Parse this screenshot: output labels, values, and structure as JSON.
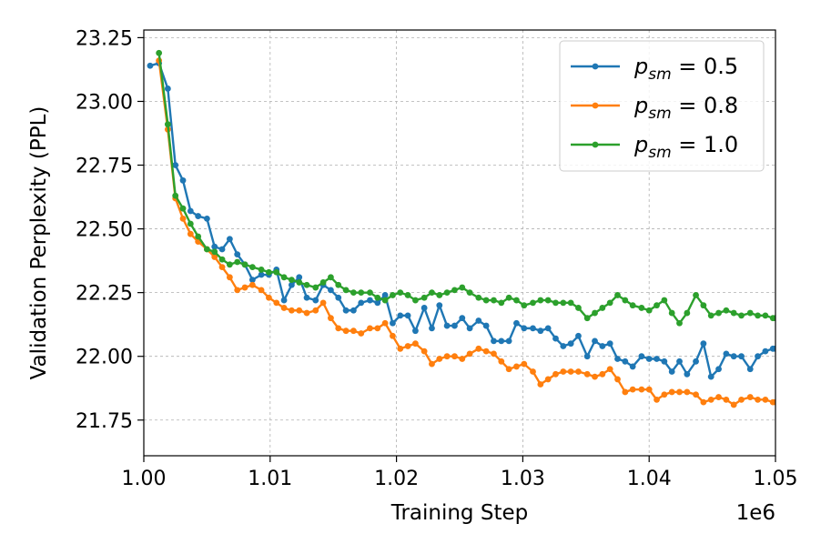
{
  "chart_data": {
    "type": "line",
    "title": "",
    "xlabel": "Training Step",
    "ylabel": "Validation Perplexity (PPL)",
    "x_offset_label": "1e6",
    "xlim": [
      1.0,
      1.05
    ],
    "ylim": [
      21.61,
      23.28
    ],
    "x_ticks": [
      1.0,
      1.01,
      1.02,
      1.03,
      1.04,
      1.05
    ],
    "x_tick_labels": [
      "1.00",
      "1.01",
      "1.02",
      "1.03",
      "1.04",
      "1.05"
    ],
    "y_ticks": [
      21.75,
      22.0,
      22.25,
      22.5,
      22.75,
      23.0,
      23.25
    ],
    "y_tick_labels": [
      "21.75",
      "22.00",
      "22.25",
      "22.50",
      "22.75",
      "23.00",
      "23.25"
    ],
    "grid": true,
    "legend_position": "top-right",
    "series": [
      {
        "name": "p_sm = 0.5",
        "legend_base": "p",
        "legend_sub": "sm",
        "legend_value": " = 0.5",
        "color": "#1f77b4",
        "x": [
          1.0005,
          1.0012,
          1.0019,
          1.0025,
          1.0031,
          1.0037,
          1.0043,
          1.005,
          1.0056,
          1.0062,
          1.0068,
          1.0074,
          1.008,
          1.0086,
          1.0093,
          1.0099,
          1.0105,
          1.0111,
          1.0117,
          1.0123,
          1.0129,
          1.0136,
          1.0142,
          1.0148,
          1.0154,
          1.016,
          1.0166,
          1.0172,
          1.0179,
          1.0185,
          1.0191,
          1.0197,
          1.0203,
          1.0209,
          1.0215,
          1.0222,
          1.0228,
          1.0234,
          1.024,
          1.0246,
          1.0252,
          1.0258,
          1.0265,
          1.0271,
          1.0277,
          1.0283,
          1.0289,
          1.0295,
          1.0301,
          1.0308,
          1.0314,
          1.032,
          1.0326,
          1.0332,
          1.0338,
          1.0344,
          1.0351,
          1.0357,
          1.0363,
          1.0369,
          1.0375,
          1.0381,
          1.0387,
          1.0394,
          1.04,
          1.0406,
          1.0412,
          1.0418,
          1.0424,
          1.043,
          1.0437,
          1.0443,
          1.0449,
          1.0455,
          1.0461,
          1.0467,
          1.0473,
          1.048,
          1.0486,
          1.0492,
          1.0498,
          1.05
        ],
        "y": [
          23.14,
          23.15,
          23.05,
          22.75,
          22.69,
          22.57,
          22.55,
          22.54,
          22.43,
          22.42,
          22.46,
          22.4,
          22.36,
          22.3,
          22.32,
          22.32,
          22.34,
          22.22,
          22.28,
          22.31,
          22.23,
          22.22,
          22.28,
          22.26,
          22.23,
          22.18,
          22.18,
          22.21,
          22.22,
          22.21,
          22.24,
          22.13,
          22.16,
          22.16,
          22.1,
          22.19,
          22.11,
          22.2,
          22.12,
          22.12,
          22.15,
          22.11,
          22.14,
          22.12,
          22.06,
          22.06,
          22.06,
          22.13,
          22.11,
          22.11,
          22.1,
          22.11,
          22.07,
          22.04,
          22.05,
          22.08,
          22.0,
          22.06,
          22.04,
          22.05,
          21.99,
          21.98,
          21.96,
          22.0,
          21.99,
          21.99,
          21.98,
          21.94,
          21.98,
          21.93,
          21.98,
          22.05,
          21.92,
          21.95,
          22.01,
          22.0,
          22.0,
          21.95,
          22.0,
          22.02,
          22.03,
          22.03
        ]
      },
      {
        "name": "p_sm = 0.8",
        "legend_base": "p",
        "legend_sub": "sm",
        "legend_value": " = 0.8",
        "color": "#ff7f0e",
        "x": [
          1.0012,
          1.0019,
          1.0025,
          1.0031,
          1.0037,
          1.0043,
          1.005,
          1.0056,
          1.0062,
          1.0068,
          1.0074,
          1.008,
          1.0086,
          1.0093,
          1.0099,
          1.0105,
          1.0111,
          1.0117,
          1.0123,
          1.0129,
          1.0136,
          1.0142,
          1.0148,
          1.0154,
          1.016,
          1.0166,
          1.0172,
          1.0179,
          1.0185,
          1.0191,
          1.0197,
          1.0203,
          1.0209,
          1.0215,
          1.0222,
          1.0228,
          1.0234,
          1.024,
          1.0246,
          1.0252,
          1.0258,
          1.0265,
          1.0271,
          1.0277,
          1.0283,
          1.0289,
          1.0295,
          1.0301,
          1.0308,
          1.0314,
          1.032,
          1.0326,
          1.0332,
          1.0338,
          1.0344,
          1.0351,
          1.0357,
          1.0363,
          1.0369,
          1.0375,
          1.0381,
          1.0387,
          1.0394,
          1.04,
          1.0406,
          1.0412,
          1.0418,
          1.0424,
          1.043,
          1.0437,
          1.0443,
          1.0449,
          1.0455,
          1.0461,
          1.0467,
          1.0473,
          1.048,
          1.0486,
          1.0492,
          1.0498,
          1.05
        ],
        "y": [
          23.16,
          22.89,
          22.62,
          22.54,
          22.48,
          22.45,
          22.42,
          22.39,
          22.35,
          22.31,
          22.26,
          22.27,
          22.28,
          22.26,
          22.23,
          22.21,
          22.19,
          22.18,
          22.18,
          22.17,
          22.18,
          22.21,
          22.15,
          22.11,
          22.1,
          22.1,
          22.09,
          22.11,
          22.11,
          22.13,
          22.08,
          22.03,
          22.04,
          22.05,
          22.02,
          21.97,
          21.99,
          22.0,
          22.0,
          21.99,
          22.01,
          22.03,
          22.02,
          22.01,
          21.98,
          21.95,
          21.96,
          21.97,
          21.94,
          21.89,
          21.91,
          21.93,
          21.94,
          21.94,
          21.94,
          21.93,
          21.92,
          21.93,
          21.95,
          21.91,
          21.86,
          21.87,
          21.87,
          21.87,
          21.83,
          21.85,
          21.86,
          21.86,
          21.86,
          21.85,
          21.82,
          21.83,
          21.84,
          21.83,
          21.81,
          21.83,
          21.84,
          21.83,
          21.83,
          21.82,
          21.82
        ]
      },
      {
        "name": "p_sm = 1.0",
        "legend_base": "p",
        "legend_sub": "sm",
        "legend_value": " = 1.0",
        "color": "#2ca02c",
        "x": [
          1.0012,
          1.0019,
          1.0025,
          1.0031,
          1.0037,
          1.0043,
          1.005,
          1.0056,
          1.0062,
          1.0068,
          1.0074,
          1.008,
          1.0086,
          1.0093,
          1.0099,
          1.0105,
          1.0111,
          1.0117,
          1.0123,
          1.0129,
          1.0136,
          1.0142,
          1.0148,
          1.0154,
          1.016,
          1.0166,
          1.0172,
          1.0179,
          1.0185,
          1.0191,
          1.0197,
          1.0203,
          1.0209,
          1.0215,
          1.0222,
          1.0228,
          1.0234,
          1.024,
          1.0246,
          1.0252,
          1.0258,
          1.0265,
          1.0271,
          1.0277,
          1.0283,
          1.0289,
          1.0295,
          1.0301,
          1.0308,
          1.0314,
          1.032,
          1.0326,
          1.0332,
          1.0338,
          1.0344,
          1.0351,
          1.0357,
          1.0363,
          1.0369,
          1.0375,
          1.0381,
          1.0387,
          1.0394,
          1.04,
          1.0406,
          1.0412,
          1.0418,
          1.0424,
          1.043,
          1.0437,
          1.0443,
          1.0449,
          1.0455,
          1.0461,
          1.0467,
          1.0473,
          1.048,
          1.0486,
          1.0492,
          1.0498,
          1.05
        ],
        "y": [
          23.19,
          22.91,
          22.63,
          22.58,
          22.52,
          22.47,
          22.42,
          22.41,
          22.38,
          22.36,
          22.37,
          22.36,
          22.35,
          22.34,
          22.33,
          22.33,
          22.31,
          22.3,
          22.29,
          22.28,
          22.27,
          22.29,
          22.31,
          22.28,
          22.26,
          22.25,
          22.25,
          22.25,
          22.23,
          22.22,
          22.24,
          22.25,
          22.24,
          22.22,
          22.23,
          22.25,
          22.24,
          22.25,
          22.26,
          22.27,
          22.25,
          22.23,
          22.22,
          22.22,
          22.21,
          22.23,
          22.22,
          22.2,
          22.21,
          22.22,
          22.22,
          22.21,
          22.21,
          22.21,
          22.19,
          22.15,
          22.17,
          22.19,
          22.21,
          22.24,
          22.22,
          22.2,
          22.19,
          22.18,
          22.2,
          22.22,
          22.17,
          22.13,
          22.17,
          22.24,
          22.2,
          22.16,
          22.17,
          22.18,
          22.17,
          22.16,
          22.17,
          22.16,
          22.16,
          22.15,
          22.15
        ]
      }
    ]
  }
}
